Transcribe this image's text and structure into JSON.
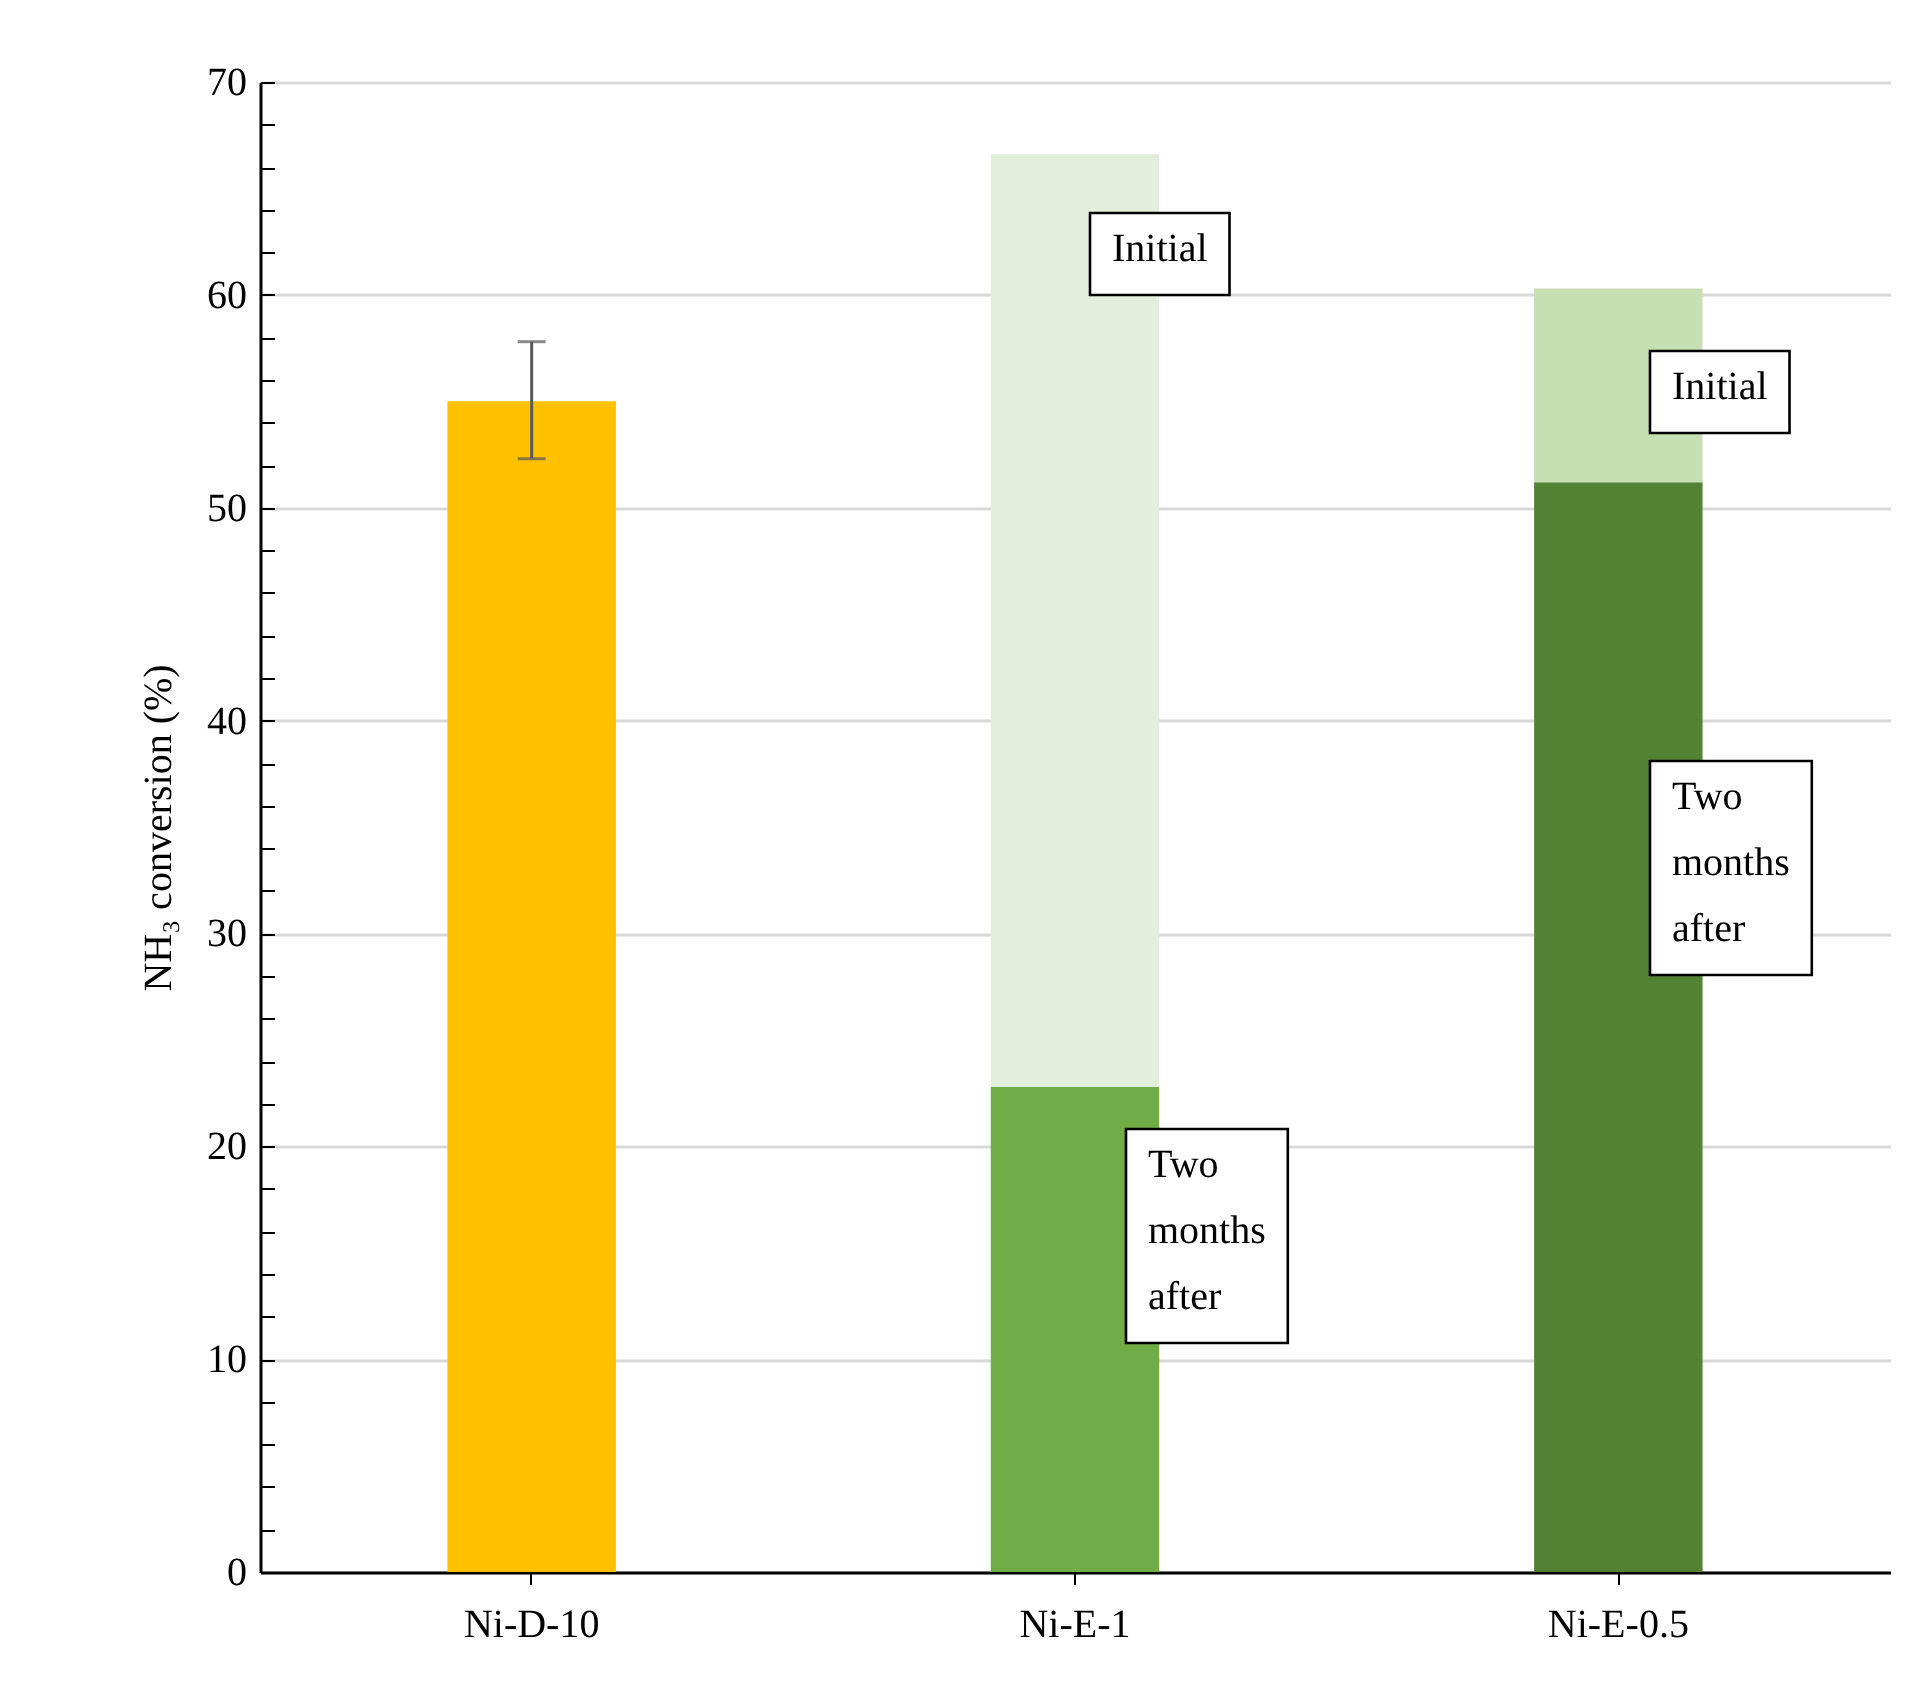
{
  "chart_data": {
    "type": "bar",
    "ylabel": "NH₃ conversion (%)",
    "categories": [
      "Ni-D-10",
      "Ni-E-1",
      "Ni-E-0.5"
    ],
    "stacked": true,
    "series": [
      {
        "colors": [
          "#ffc000",
          "#70ad47",
          "#548235"
        ],
        "values": [
          55.0,
          22.8,
          51.2
        ],
        "errors": [
          [
            52.3,
            57.8
          ],
          null,
          null
        ]
      },
      {
        "colors": [
          null,
          "#e2efda",
          "#c6e0b4"
        ],
        "values": [
          null,
          43.8,
          9.1
        ]
      }
    ],
    "ylim": [
      0,
      70
    ],
    "yticks": [
      0,
      {
        "value": 2,
        "label": null
      },
      {
        "value": 4,
        "label": null
      },
      {
        "value": 6,
        "label": null
      },
      {
        "value": 8,
        "label": null
      },
      10,
      {
        "value": 12,
        "label": null
      },
      {
        "value": 14,
        "label": null
      },
      {
        "value": 16,
        "label": null
      },
      {
        "value": 18,
        "label": null
      },
      20,
      {
        "value": 22,
        "label": null
      },
      {
        "value": 24,
        "label": null
      },
      {
        "value": 26,
        "label": null
      },
      {
        "value": 28,
        "label": null
      },
      30,
      {
        "value": 32,
        "label": null
      },
      {
        "value": 34,
        "label": null
      },
      {
        "value": 36,
        "label": null
      },
      {
        "value": 38,
        "label": null
      },
      40,
      {
        "value": 42,
        "label": null
      },
      {
        "value": 44,
        "label": null
      },
      {
        "value": 46,
        "label": null
      },
      {
        "value": 48,
        "label": null
      },
      50,
      {
        "value": 52,
        "label": null
      },
      {
        "value": 54,
        "label": null
      },
      {
        "value": 56,
        "label": null
      },
      {
        "value": 58,
        "label": null
      },
      60,
      {
        "value": 62,
        "label": null
      },
      {
        "value": 64,
        "label": null
      },
      {
        "value": 66,
        "label": null
      },
      {
        "value": 68,
        "label": null
      },
      70
    ],
    "grid": "y",
    "annotations": [
      "Initial",
      "Initial",
      "Two months after",
      "Two months after"
    ]
  }
}
